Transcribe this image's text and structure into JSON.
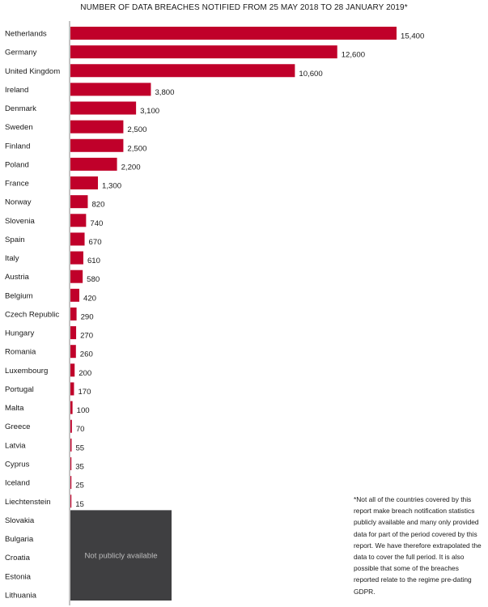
{
  "chart_data": {
    "type": "bar",
    "orientation": "horizontal",
    "title": "NUMBER OF DATA BREACHES NOTIFIED FROM 25 MAY 2018 TO 28 JANUARY 2019*",
    "categories": [
      "Netherlands",
      "Germany",
      "United Kingdom",
      "Ireland",
      "Denmark",
      "Sweden",
      "Finland",
      "Poland",
      "France",
      "Norway",
      "Slovenia",
      "Spain",
      "Italy",
      "Austria",
      "Belgium",
      "Czech Republic",
      "Hungary",
      "Romania",
      "Luxembourg",
      "Portugal",
      "Malta",
      "Greece",
      "Latvia",
      "Cyprus",
      "Iceland",
      "Liechtenstein",
      "Slovakia",
      "Bulgaria",
      "Croatia",
      "Estonia",
      "Lithuania"
    ],
    "values": [
      15400,
      12600,
      10600,
      3800,
      3100,
      2500,
      2500,
      2200,
      1300,
      820,
      740,
      670,
      610,
      580,
      420,
      290,
      270,
      260,
      200,
      170,
      100,
      70,
      55,
      35,
      25,
      15,
      null,
      null,
      null,
      null,
      null
    ],
    "value_labels": [
      "15,400",
      "12,600",
      "10,600",
      "3,800",
      "3,100",
      "2,500",
      "2,500",
      "2,200",
      "1,300",
      "820",
      "740",
      "670",
      "610",
      "580",
      "420",
      "290",
      "270",
      "260",
      "200",
      "170",
      "100",
      "70",
      "55",
      "35",
      "25",
      "15",
      "",
      "",
      "",
      "",
      ""
    ],
    "not_available_label": "Not publicly available",
    "xlim": [
      0,
      15400
    ],
    "colors": {
      "bar": "#c0002a",
      "not_available_box": "#3f3f41",
      "not_available_text": "#bdbdbd",
      "axis": "#888888"
    },
    "footnote": "*Not all of the countries covered by this report make breach notification statistics publicly available and many only provided data for part of the period covered by this report. We have therefore extrapolated the data to cover the full period. It is also possible that some of the breaches reported relate to the regime pre-dating GDPR."
  }
}
